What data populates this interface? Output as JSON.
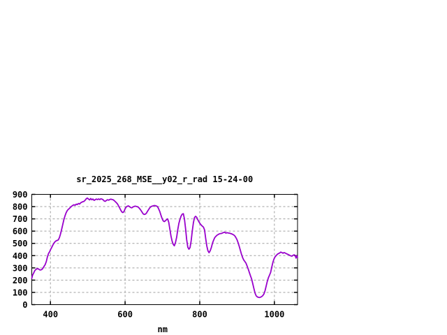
{
  "page": {
    "background_color": "#ffffff"
  },
  "chart_data": {
    "type": "line",
    "title": "sr_2025_268_MSE__y02_r_rad 15-24-00",
    "xlabel": "nm",
    "ylabel": "",
    "xlim": [
      350,
      1062
    ],
    "ylim": [
      0,
      900
    ],
    "x_ticks": [
      400,
      600,
      800,
      1000
    ],
    "y_ticks": [
      0,
      100,
      200,
      300,
      400,
      500,
      600,
      700,
      800,
      900
    ],
    "grid": true,
    "legend": "none",
    "line_color": "#9900cc",
    "grid_color": "#a0a0a0",
    "frame_color": "#000000",
    "series": [
      {
        "name": "spectral-radiance",
        "points": [
          [
            350,
            215
          ],
          [
            352,
            240
          ],
          [
            355,
            258
          ],
          [
            358,
            278
          ],
          [
            362,
            290
          ],
          [
            366,
            294
          ],
          [
            369,
            288
          ],
          [
            372,
            283
          ],
          [
            375,
            284
          ],
          [
            378,
            290
          ],
          [
            380,
            298
          ],
          [
            383,
            313
          ],
          [
            386,
            327
          ],
          [
            389,
            352
          ],
          [
            392,
            390
          ],
          [
            395,
            418
          ],
          [
            398,
            433
          ],
          [
            400,
            447
          ],
          [
            403,
            465
          ],
          [
            406,
            483
          ],
          [
            409,
            500
          ],
          [
            412,
            512
          ],
          [
            415,
            520
          ],
          [
            418,
            524
          ],
          [
            421,
            528
          ],
          [
            424,
            546
          ],
          [
            427,
            576
          ],
          [
            430,
            615
          ],
          [
            433,
            655
          ],
          [
            436,
            695
          ],
          [
            439,
            725
          ],
          [
            442,
            750
          ],
          [
            445,
            768
          ],
          [
            448,
            778
          ],
          [
            451,
            786
          ],
          [
            454,
            796
          ],
          [
            457,
            804
          ],
          [
            460,
            810
          ],
          [
            463,
            815
          ],
          [
            466,
            811
          ],
          [
            469,
            820
          ],
          [
            472,
            817
          ],
          [
            475,
            826
          ],
          [
            478,
            821
          ],
          [
            481,
            831
          ],
          [
            484,
            836
          ],
          [
            487,
            840
          ],
          [
            490,
            843
          ],
          [
            493,
            852
          ],
          [
            496,
            864
          ],
          [
            499,
            870
          ],
          [
            502,
            862
          ],
          [
            505,
            855
          ],
          [
            508,
            866
          ],
          [
            511,
            856
          ],
          [
            514,
            862
          ],
          [
            517,
            851
          ],
          [
            520,
            856
          ],
          [
            523,
            862
          ],
          [
            526,
            857
          ],
          [
            529,
            863
          ],
          [
            532,
            857
          ],
          [
            535,
            864
          ],
          [
            538,
            861
          ],
          [
            541,
            856
          ],
          [
            544,
            846
          ],
          [
            547,
            843
          ],
          [
            550,
            851
          ],
          [
            553,
            856
          ],
          [
            556,
            853
          ],
          [
            559,
            858
          ],
          [
            562,
            861
          ],
          [
            565,
            858
          ],
          [
            568,
            856
          ],
          [
            571,
            849
          ],
          [
            574,
            840
          ],
          [
            577,
            831
          ],
          [
            580,
            820
          ],
          [
            583,
            803
          ],
          [
            586,
            786
          ],
          [
            589,
            768
          ],
          [
            592,
            755
          ],
          [
            594,
            752
          ],
          [
            596,
            756
          ],
          [
            598,
            766
          ],
          [
            600,
            782
          ],
          [
            603,
            797
          ],
          [
            606,
            803
          ],
          [
            609,
            806
          ],
          [
            612,
            800
          ],
          [
            615,
            793
          ],
          [
            618,
            790
          ],
          [
            621,
            797
          ],
          [
            624,
            801
          ],
          [
            627,
            804
          ],
          [
            630,
            802
          ],
          [
            633,
            800
          ],
          [
            636,
            794
          ],
          [
            639,
            784
          ],
          [
            642,
            772
          ],
          [
            645,
            757
          ],
          [
            648,
            742
          ],
          [
            651,
            736
          ],
          [
            654,
            738
          ],
          [
            657,
            746
          ],
          [
            660,
            762
          ],
          [
            663,
            776
          ],
          [
            666,
            790
          ],
          [
            669,
            799
          ],
          [
            672,
            804
          ],
          [
            675,
            806
          ],
          [
            678,
            809
          ],
          [
            681,
            808
          ],
          [
            684,
            805
          ],
          [
            687,
            799
          ],
          [
            690,
            781
          ],
          [
            693,
            760
          ],
          [
            696,
            731
          ],
          [
            699,
            704
          ],
          [
            702,
            684
          ],
          [
            705,
            678
          ],
          [
            708,
            684
          ],
          [
            711,
            693
          ],
          [
            714,
            700
          ],
          [
            717,
            672
          ],
          [
            720,
            616
          ],
          [
            723,
            560
          ],
          [
            726,
            519
          ],
          [
            729,
            492
          ],
          [
            732,
            480
          ],
          [
            735,
            506
          ],
          [
            738,
            549
          ],
          [
            741,
            611
          ],
          [
            744,
            663
          ],
          [
            747,
            696
          ],
          [
            750,
            723
          ],
          [
            753,
            739
          ],
          [
            756,
            742
          ],
          [
            759,
            699
          ],
          [
            762,
            620
          ],
          [
            765,
            529
          ],
          [
            768,
            469
          ],
          [
            771,
            452
          ],
          [
            774,
            466
          ],
          [
            777,
            521
          ],
          [
            780,
            601
          ],
          [
            783,
            669
          ],
          [
            786,
            711
          ],
          [
            789,
            721
          ],
          [
            792,
            712
          ],
          [
            795,
            692
          ],
          [
            798,
            675
          ],
          [
            801,
            661
          ],
          [
            804,
            650
          ],
          [
            807,
            640
          ],
          [
            810,
            633
          ],
          [
            813,
            609
          ],
          [
            816,
            540
          ],
          [
            819,
            479
          ],
          [
            822,
            440
          ],
          [
            825,
            424
          ],
          [
            828,
            439
          ],
          [
            831,
            466
          ],
          [
            834,
            501
          ],
          [
            837,
            526
          ],
          [
            840,
            546
          ],
          [
            843,
            557
          ],
          [
            846,
            566
          ],
          [
            849,
            572
          ],
          [
            852,
            577
          ],
          [
            855,
            580
          ],
          [
            858,
            581
          ],
          [
            861,
            585
          ],
          [
            864,
            589
          ],
          [
            867,
            591
          ],
          [
            870,
            584
          ],
          [
            873,
            587
          ],
          [
            876,
            585
          ],
          [
            879,
            584
          ],
          [
            882,
            581
          ],
          [
            885,
            578
          ],
          [
            888,
            574
          ],
          [
            891,
            569
          ],
          [
            894,
            561
          ],
          [
            897,
            547
          ],
          [
            900,
            529
          ],
          [
            903,
            504
          ],
          [
            906,
            474
          ],
          [
            909,
            442
          ],
          [
            912,
            410
          ],
          [
            915,
            384
          ],
          [
            918,
            364
          ],
          [
            921,
            352
          ],
          [
            924,
            337
          ],
          [
            927,
            314
          ],
          [
            930,
            289
          ],
          [
            933,
            261
          ],
          [
            936,
            234
          ],
          [
            939,
            209
          ],
          [
            942,
            171
          ],
          [
            945,
            132
          ],
          [
            948,
            95
          ],
          [
            951,
            73
          ],
          [
            954,
            64
          ],
          [
            957,
            60
          ],
          [
            960,
            58
          ],
          [
            963,
            61
          ],
          [
            966,
            66
          ],
          [
            969,
            74
          ],
          [
            972,
            87
          ],
          [
            975,
            114
          ],
          [
            978,
            152
          ],
          [
            981,
            190
          ],
          [
            984,
            220
          ],
          [
            987,
            241
          ],
          [
            990,
            263
          ],
          [
            993,
            306
          ],
          [
            996,
            345
          ],
          [
            999,
            373
          ],
          [
            1002,
            391
          ],
          [
            1005,
            401
          ],
          [
            1008,
            411
          ],
          [
            1011,
            417
          ],
          [
            1014,
            421
          ],
          [
            1017,
            429
          ],
          [
            1020,
            425
          ],
          [
            1023,
            420
          ],
          [
            1026,
            425
          ],
          [
            1029,
            421
          ],
          [
            1032,
            416
          ],
          [
            1035,
            412
          ],
          [
            1038,
            408
          ],
          [
            1041,
            402
          ],
          [
            1044,
            398
          ],
          [
            1047,
            396
          ],
          [
            1050,
            403
          ],
          [
            1053,
            407
          ],
          [
            1056,
            398
          ],
          [
            1058,
            380
          ],
          [
            1060,
            399
          ],
          [
            1062,
            386
          ]
        ]
      }
    ]
  }
}
